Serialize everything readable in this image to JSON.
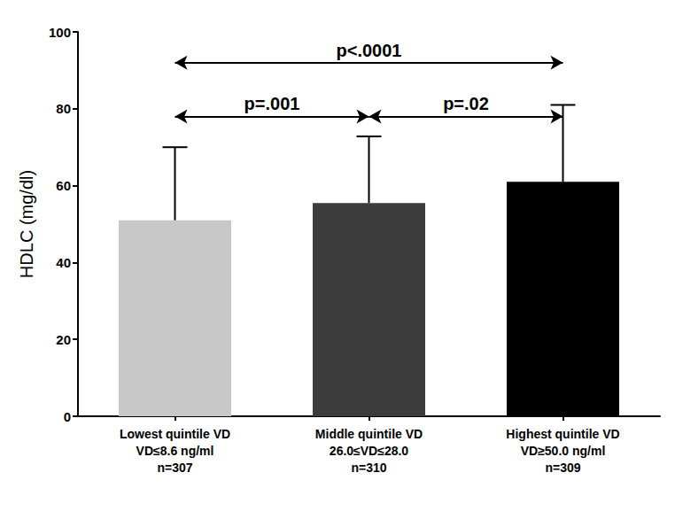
{
  "chart_data": {
    "type": "bar",
    "categories": [
      "Lowest quintile VD\nVD≤8.6 ng/ml\nn=307",
      "Middle quintile VD\n26.0≤VD≤28.0\nn=310",
      "Highest quintile VD\nVD≥50.0 ng/ml\nn=309"
    ],
    "values": [
      51,
      55.5,
      61
    ],
    "errors": [
      19,
      17.3,
      20
    ],
    "colors": [
      "#c8c8c8",
      "#3c3c3c",
      "#000000"
    ],
    "y_label": "HDLC (mg/dl)",
    "ylim": [
      0,
      100
    ],
    "yticks": [
      0,
      20,
      40,
      60,
      80,
      100
    ],
    "grid": false,
    "annotations": [
      {
        "text": "p<.0001",
        "from": 0,
        "to": 2,
        "y": 92
      },
      {
        "text": "p=.001",
        "from": 0,
        "to": 1,
        "y": 78
      },
      {
        "text": "p=.02",
        "from": 1,
        "to": 2,
        "y": 78
      }
    ]
  }
}
